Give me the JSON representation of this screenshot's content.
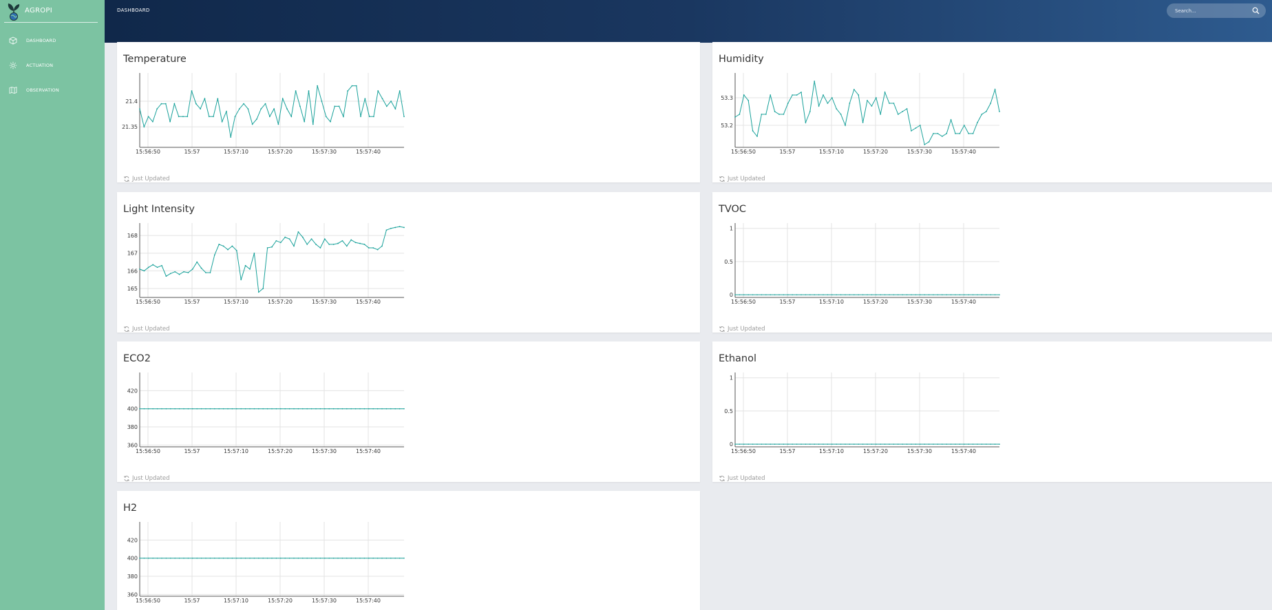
{
  "sidebar": {
    "brand": "AGROPI",
    "items": [
      {
        "label": "DASHBOARD",
        "icon": "cube-icon"
      },
      {
        "label": "ACTUATION",
        "icon": "gear-icon"
      },
      {
        "label": "OBSERVATION",
        "icon": "map-icon"
      }
    ]
  },
  "header": {
    "title": "DASHBOARD",
    "search_placeholder": "Search..."
  },
  "colors": {
    "sidebar": "#7cc3a2",
    "header_start": "#10284a",
    "header_end": "#2e5b8f",
    "series": "#18a19a"
  },
  "chart_data": [
    {
      "type": "line",
      "title": "Temperature",
      "x_ticks": [
        "15:56:50",
        "15:57",
        "15:57:10",
        "15:57:20",
        "15:57:30",
        "15:57:40"
      ],
      "y_ticks": [
        "21.35",
        "21.4"
      ],
      "ylim": [
        21.31,
        21.455
      ],
      "values": [
        21.385,
        21.35,
        21.37,
        21.36,
        21.385,
        21.395,
        21.395,
        21.36,
        21.395,
        21.37,
        21.37,
        21.37,
        21.42,
        21.395,
        21.385,
        21.405,
        21.37,
        21.37,
        21.405,
        21.36,
        21.38,
        21.33,
        21.37,
        21.385,
        21.395,
        21.385,
        21.355,
        21.365,
        21.385,
        21.395,
        21.37,
        21.385,
        21.355,
        21.405,
        21.385,
        21.37,
        21.42,
        21.39,
        21.36,
        21.42,
        21.355,
        21.43,
        21.4,
        21.37,
        21.36,
        21.39,
        21.39,
        21.37,
        21.42,
        21.43,
        21.43,
        21.37,
        21.405,
        21.37,
        21.37,
        21.42,
        21.405,
        21.39,
        21.4,
        21.385,
        21.42,
        21.37
      ],
      "footer": "Just Updated"
    },
    {
      "type": "line",
      "title": "Humidity",
      "x_ticks": [
        "15:56:50",
        "15:57",
        "15:57:10",
        "15:57:20",
        "15:57:30",
        "15:57:40"
      ],
      "y_ticks": [
        "53.2",
        "53.3"
      ],
      "ylim": [
        53.12,
        53.39
      ],
      "values": [
        53.23,
        53.24,
        53.31,
        53.29,
        53.18,
        53.16,
        53.24,
        53.24,
        53.31,
        53.25,
        53.24,
        53.24,
        53.28,
        53.31,
        53.31,
        53.32,
        53.21,
        53.25,
        53.36,
        53.27,
        53.31,
        53.28,
        53.3,
        53.26,
        53.24,
        53.2,
        53.28,
        53.33,
        53.31,
        53.21,
        53.29,
        53.27,
        53.3,
        53.24,
        53.32,
        53.28,
        53.28,
        53.24,
        53.25,
        53.26,
        53.18,
        53.19,
        53.2,
        53.13,
        53.14,
        53.17,
        53.17,
        53.16,
        53.17,
        53.22,
        53.17,
        53.17,
        53.2,
        53.17,
        53.17,
        53.21,
        53.24,
        53.25,
        53.28,
        53.33,
        53.25
      ],
      "footer": "Just Updated"
    },
    {
      "type": "line",
      "title": "Light Intensity",
      "x_ticks": [
        "15:56:50",
        "15:57",
        "15:57:10",
        "15:57:20",
        "15:57:30",
        "15:57:40"
      ],
      "y_ticks": [
        "165",
        "166",
        "167",
        "168"
      ],
      "ylim": [
        164.5,
        168.7
      ],
      "values": [
        166.1,
        166.0,
        166.2,
        166.35,
        166.2,
        166.3,
        165.7,
        165.85,
        165.95,
        165.8,
        165.95,
        165.9,
        166.1,
        166.5,
        166.15,
        165.9,
        165.9,
        166.9,
        167.5,
        167.4,
        167.2,
        167.4,
        167.15,
        165.5,
        166.3,
        166.1,
        167.0,
        164.8,
        165.0,
        167.3,
        167.35,
        167.7,
        167.6,
        167.9,
        167.8,
        167.4,
        168.2,
        167.9,
        167.5,
        167.8,
        167.5,
        167.3,
        167.8,
        167.5,
        167.5,
        167.55,
        167.7,
        167.4,
        167.75,
        167.6,
        167.55,
        167.5,
        167.3,
        167.3,
        167.2,
        167.4,
        168.3,
        168.4,
        168.45,
        168.5,
        168.45
      ],
      "footer": "Just Updated"
    },
    {
      "type": "line",
      "title": "TVOC",
      "x_ticks": [
        "15:56:50",
        "15:57",
        "15:57:10",
        "15:57:20",
        "15:57:30",
        "15:57:40"
      ],
      "y_ticks": [
        "0",
        "0.5",
        "1"
      ],
      "ylim": [
        -0.04,
        1.08
      ],
      "values": [
        0,
        0
      ],
      "footer": "Just Updated"
    },
    {
      "type": "line",
      "title": "ECO2",
      "x_ticks": [
        "15:56:50",
        "15:57",
        "15:57:10",
        "15:57:20",
        "15:57:30",
        "15:57:40"
      ],
      "y_ticks": [
        "360",
        "380",
        "400",
        "420"
      ],
      "ylim": [
        358,
        440
      ],
      "values": [
        400,
        400
      ],
      "footer": "Just Updated"
    },
    {
      "type": "line",
      "title": "Ethanol",
      "x_ticks": [
        "15:56:50",
        "15:57",
        "15:57:10",
        "15:57:20",
        "15:57:30",
        "15:57:40"
      ],
      "y_ticks": [
        "0",
        "0.5",
        "1"
      ],
      "ylim": [
        -0.04,
        1.08
      ],
      "values": [
        0,
        0
      ],
      "footer": "Just Updated"
    },
    {
      "type": "line",
      "title": "H2",
      "x_ticks": [
        "15:56:50",
        "15:57",
        "15:57:10",
        "15:57:20",
        "15:57:30",
        "15:57:40"
      ],
      "y_ticks": [
        "360",
        "380",
        "400",
        "420"
      ],
      "ylim": [
        358,
        440
      ],
      "values": [
        400,
        400
      ],
      "footer": ""
    }
  ]
}
